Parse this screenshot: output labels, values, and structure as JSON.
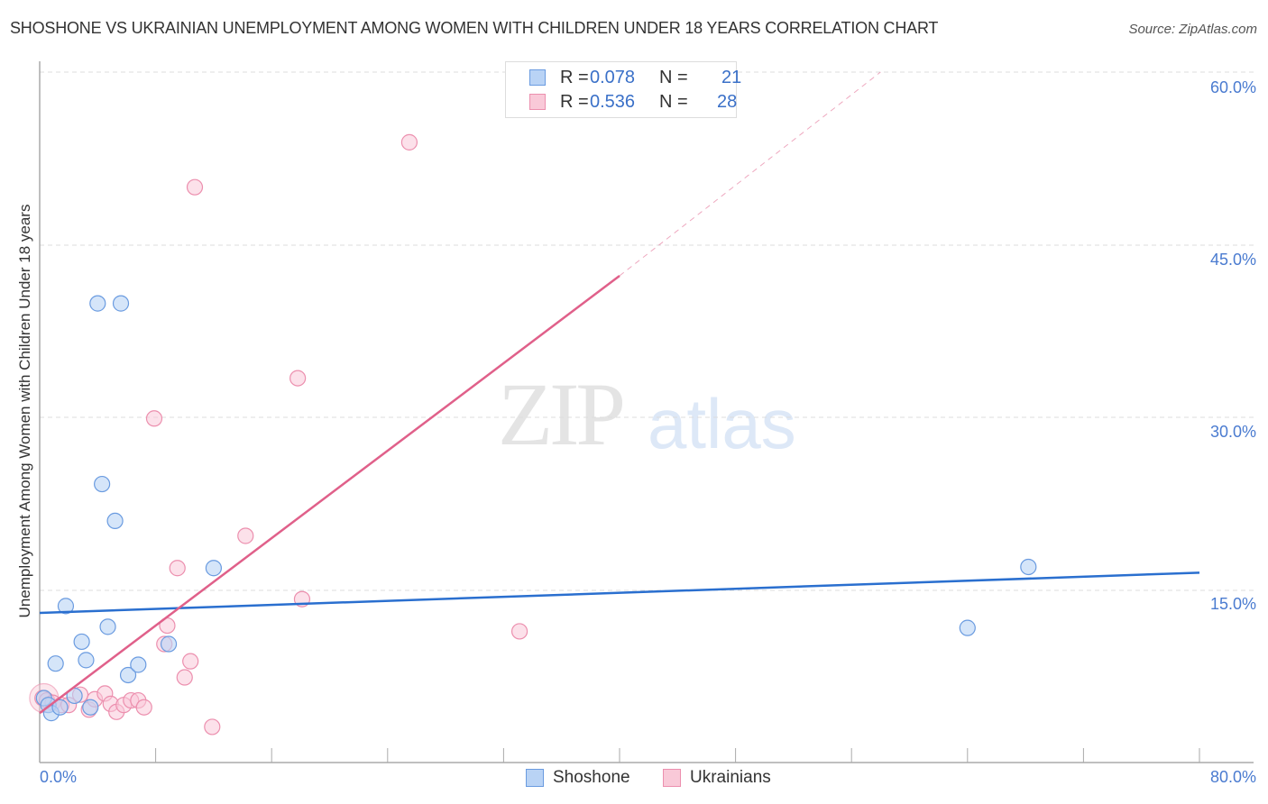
{
  "header": {
    "title": "SHOSHONE VS UKRAINIAN UNEMPLOYMENT AMONG WOMEN WITH CHILDREN UNDER 18 YEARS CORRELATION CHART",
    "source": "Source: ZipAtlas.com"
  },
  "watermark": {
    "zip": "ZIP",
    "atlas": "atlas"
  },
  "axes": {
    "ylabel": "Unemployment Among Women with Children Under 18 years",
    "yticks": [
      "60.0%",
      "45.0%",
      "30.0%",
      "15.0%"
    ],
    "xtick_left": "0.0%",
    "xtick_right": "80.0%"
  },
  "legend_top": {
    "rows": [
      {
        "r_label": "R =",
        "r_value": "0.078",
        "n_label": "N =",
        "n_value": "21"
      },
      {
        "r_label": "R =",
        "r_value": "0.536",
        "n_label": "N =",
        "n_value": "28"
      }
    ]
  },
  "legend_bottom": {
    "items": [
      {
        "label": "Shoshone"
      },
      {
        "label": "Ukrainians"
      }
    ]
  },
  "colors": {
    "shoshone_fill": "#b9d3f5",
    "shoshone_stroke": "#6a9be0",
    "shoshone_line": "#2a6fcf",
    "ukrainian_fill": "#f9c9d8",
    "ukrainian_stroke": "#ec8fae",
    "ukrainian_line": "#e0608a",
    "tick_text": "#4a7bd0"
  },
  "chart_data": {
    "type": "scatter",
    "title": "SHOSHONE VS UKRAINIAN UNEMPLOYMENT AMONG WOMEN WITH CHILDREN UNDER 18 YEARS CORRELATION CHART",
    "xlabel": "",
    "ylabel": "Unemployment Among Women with Children Under 18 years",
    "xlim": [
      0,
      80
    ],
    "ylim": [
      0,
      60
    ],
    "x_tick_labels": [
      "0.0%",
      "80.0%"
    ],
    "y_tick_labels": [
      "15.0%",
      "30.0%",
      "45.0%",
      "60.0%"
    ],
    "grid": {
      "horizontal_dashed": true,
      "values": [
        15,
        30,
        45,
        60
      ]
    },
    "legend_position": "bottom-center",
    "series": [
      {
        "name": "Shoshone",
        "R": 0.078,
        "N": 21,
        "points": [
          [
            0.3,
            5.6
          ],
          [
            0.6,
            5.0
          ],
          [
            0.8,
            4.3
          ],
          [
            1.1,
            8.6
          ],
          [
            1.4,
            4.8
          ],
          [
            1.8,
            13.6
          ],
          [
            2.4,
            5.8
          ],
          [
            2.9,
            10.5
          ],
          [
            3.2,
            8.9
          ],
          [
            3.5,
            4.8
          ],
          [
            4.0,
            39.9
          ],
          [
            4.3,
            24.2
          ],
          [
            4.7,
            11.8
          ],
          [
            5.2,
            21.0
          ],
          [
            5.6,
            39.9
          ],
          [
            6.1,
            7.6
          ],
          [
            6.8,
            8.5
          ],
          [
            8.9,
            10.3
          ],
          [
            12.0,
            16.9
          ],
          [
            64.0,
            11.7
          ],
          [
            68.2,
            17.0
          ]
        ],
        "trend_line": {
          "x": [
            0,
            80
          ],
          "y": [
            13.0,
            16.5
          ]
        }
      },
      {
        "name": "Ukrainians",
        "R": 0.536,
        "N": 28,
        "points": [
          [
            0.2,
            5.6
          ],
          [
            0.5,
            5.4
          ],
          [
            0.9,
            5.2
          ],
          [
            1.5,
            5.0
          ],
          [
            2.0,
            5.0
          ],
          [
            2.8,
            5.9
          ],
          [
            3.4,
            4.6
          ],
          [
            3.8,
            5.5
          ],
          [
            4.5,
            6.0
          ],
          [
            4.9,
            5.1
          ],
          [
            5.3,
            4.4
          ],
          [
            5.8,
            5.0
          ],
          [
            6.3,
            5.4
          ],
          [
            6.8,
            5.4
          ],
          [
            7.2,
            4.8
          ],
          [
            7.9,
            29.9
          ],
          [
            8.6,
            10.3
          ],
          [
            8.8,
            11.9
          ],
          [
            9.5,
            16.9
          ],
          [
            10.0,
            7.4
          ],
          [
            10.4,
            8.8
          ],
          [
            10.7,
            50.0
          ],
          [
            11.9,
            3.1
          ],
          [
            14.2,
            19.7
          ],
          [
            17.8,
            33.4
          ],
          [
            18.1,
            14.2
          ],
          [
            25.5,
            53.9
          ],
          [
            33.1,
            11.4
          ]
        ],
        "trend_line": {
          "x": [
            0,
            40
          ],
          "y": [
            4.3,
            42.3
          ]
        },
        "trend_line_extrapolated_dashed": {
          "x": [
            40,
            58
          ],
          "y": [
            42.3,
            60.0
          ]
        }
      }
    ]
  }
}
